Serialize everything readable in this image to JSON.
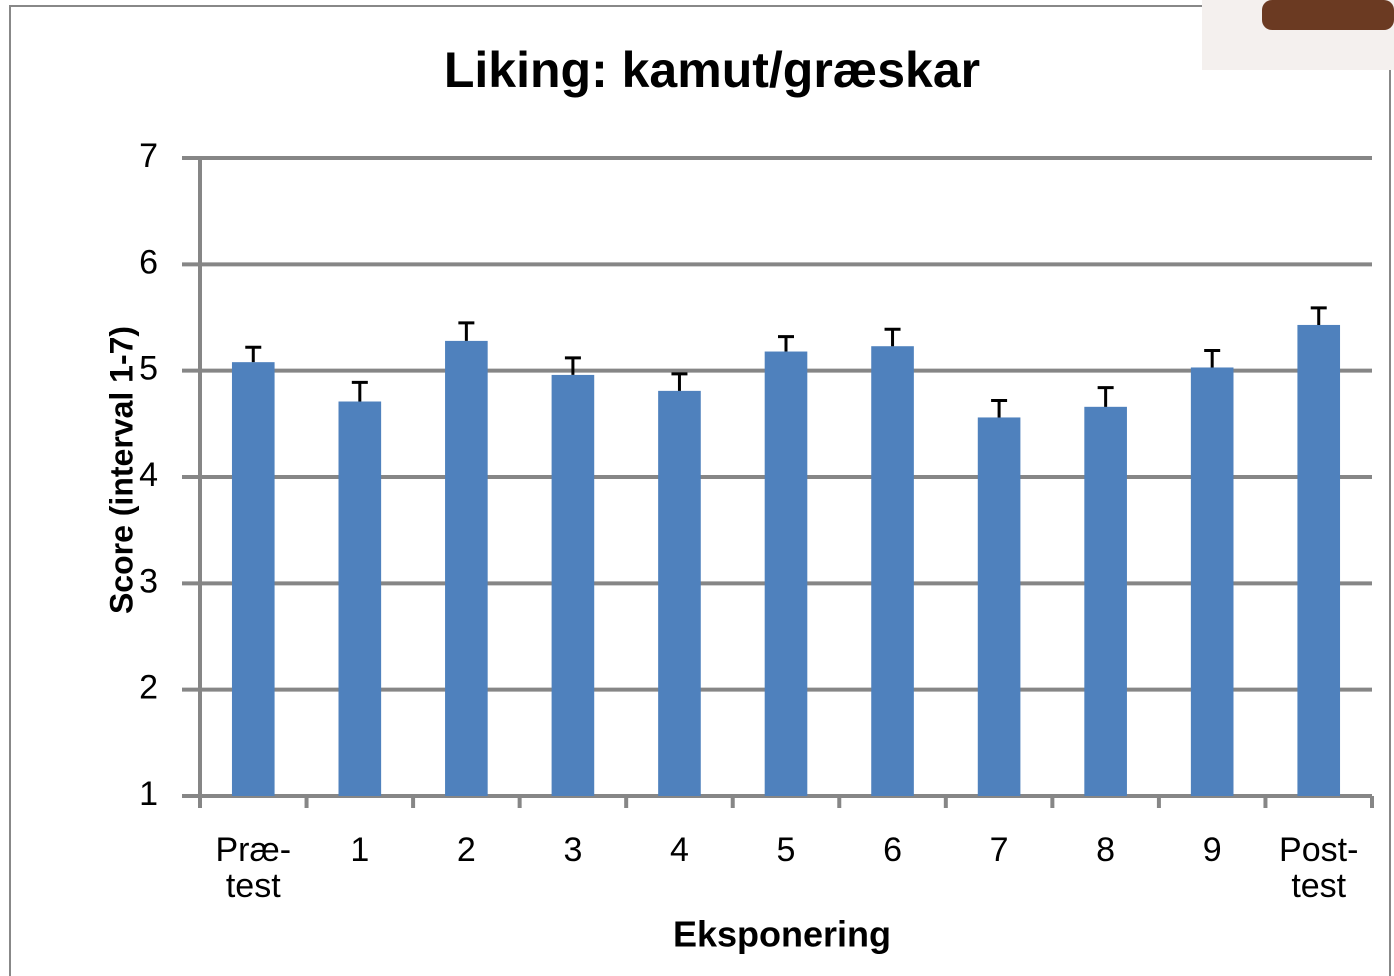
{
  "chart_data": {
    "type": "bar",
    "title": "Liking: kamut/græskar",
    "x_label": "Eksponering",
    "y_label": "Score (interval 1-7)",
    "categories": [
      "Præ-test",
      "1",
      "2",
      "3",
      "4",
      "5",
      "6",
      "7",
      "8",
      "9",
      "Post-test"
    ],
    "values": [
      5.08,
      4.71,
      5.28,
      4.96,
      4.81,
      5.18,
      5.23,
      4.56,
      4.66,
      5.03,
      5.43
    ],
    "errors": [
      0.14,
      0.18,
      0.17,
      0.16,
      0.16,
      0.14,
      0.16,
      0.16,
      0.18,
      0.16,
      0.16
    ],
    "color": "#4f81bd",
    "ylim": [
      1,
      7
    ],
    "yticks": [
      1,
      2,
      3,
      4,
      5,
      6,
      7
    ],
    "grid": true
  }
}
